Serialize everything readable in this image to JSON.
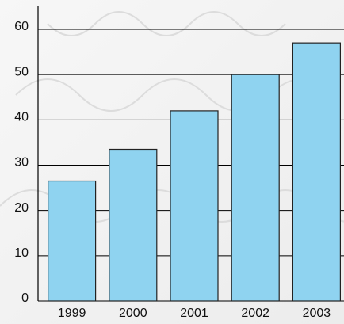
{
  "chart_data": {
    "type": "bar",
    "categories": [
      "1999",
      "2000",
      "2001",
      "2002",
      "2003"
    ],
    "values": [
      26.5,
      33.5,
      42,
      50,
      57
    ],
    "color": "#8fd3f0",
    "ylim": [
      0,
      60
    ],
    "yticks": [
      0,
      10,
      20,
      30,
      40,
      50,
      60
    ],
    "grid": true
  }
}
